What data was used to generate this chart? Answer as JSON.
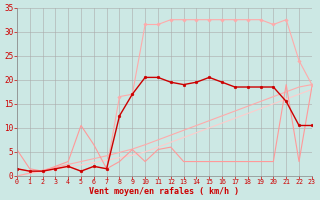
{
  "background_color": "#cce8e4",
  "grid_color": "#aaaaaa",
  "xlabel": "Vent moyen/en rafales ( km/h )",
  "xlabel_color": "#cc0000",
  "tick_color": "#cc0000",
  "xlim": [
    0,
    23
  ],
  "ylim": [
    0,
    35
  ],
  "xticks": [
    0,
    1,
    2,
    3,
    4,
    5,
    6,
    7,
    8,
    9,
    10,
    11,
    12,
    13,
    14,
    15,
    16,
    17,
    18,
    19,
    20,
    21,
    22,
    23
  ],
  "yticks": [
    0,
    5,
    10,
    15,
    20,
    25,
    30,
    35
  ],
  "lines": [
    {
      "x": [
        0,
        1,
        2,
        3,
        4,
        5,
        6,
        7,
        8,
        9,
        10,
        11,
        12,
        13,
        14,
        15,
        16,
        17,
        18,
        19,
        20,
        21,
        22,
        23
      ],
      "y": [
        0,
        0.5,
        0.9,
        1.4,
        1.8,
        2.3,
        2.8,
        3.3,
        3.8,
        4.3,
        5.0,
        6.0,
        7.0,
        8.0,
        9.0,
        10.0,
        11.0,
        12.0,
        13.0,
        14.0,
        15.0,
        16.0,
        17.0,
        18.0
      ],
      "color": "#ffcccc",
      "lw": 0.8,
      "marker": null,
      "ms": 0
    },
    {
      "x": [
        0,
        1,
        2,
        3,
        4,
        5,
        6,
        7,
        8,
        9,
        10,
        11,
        12,
        13,
        14,
        15,
        16,
        17,
        18,
        19,
        20,
        21,
        22,
        23
      ],
      "y": [
        0,
        0.6,
        1.2,
        1.8,
        2.4,
        3.0,
        3.6,
        4.2,
        4.9,
        5.6,
        6.5,
        7.5,
        8.5,
        9.5,
        10.5,
        11.5,
        12.5,
        13.5,
        14.5,
        15.5,
        16.5,
        17.5,
        18.5,
        19.0
      ],
      "color": "#ffaaaa",
      "lw": 0.8,
      "marker": null,
      "ms": 0
    },
    {
      "x": [
        0,
        1,
        2,
        3,
        4,
        5,
        6,
        7,
        8,
        9,
        10,
        11,
        12,
        13,
        14,
        15,
        16,
        17,
        18,
        19,
        20,
        21,
        22,
        23
      ],
      "y": [
        1.5,
        1.0,
        1.0,
        1.5,
        2.0,
        1.0,
        2.0,
        1.5,
        16.5,
        17.0,
        31.5,
        31.5,
        32.5,
        32.5,
        32.5,
        32.5,
        32.5,
        32.5,
        32.5,
        32.5,
        31.5,
        32.5,
        24.0,
        19.0
      ],
      "color": "#ffaaaa",
      "lw": 0.8,
      "marker": "D",
      "ms": 1.8
    },
    {
      "x": [
        0,
        1,
        2,
        3,
        4,
        5,
        6,
        7,
        8,
        9,
        10,
        11,
        12,
        13,
        14,
        15,
        16,
        17,
        18,
        19,
        20,
        21,
        22,
        23
      ],
      "y": [
        5.5,
        1.5,
        1.0,
        2.0,
        3.0,
        10.5,
        6.5,
        1.5,
        3.0,
        5.5,
        3.0,
        5.5,
        6.0,
        3.0,
        3.0,
        3.0,
        3.0,
        3.0,
        3.0,
        3.0,
        3.0,
        19.0,
        3.0,
        18.5
      ],
      "color": "#ff9999",
      "lw": 0.8,
      "marker": null,
      "ms": 0
    },
    {
      "x": [
        0,
        1,
        2,
        3,
        4,
        5,
        6,
        7,
        8,
        9,
        10,
        11,
        12,
        13,
        14,
        15,
        16,
        17,
        18,
        19,
        20,
        21,
        22,
        23
      ],
      "y": [
        1.5,
        1.0,
        1.0,
        1.5,
        2.0,
        1.0,
        2.0,
        1.5,
        12.5,
        17.0,
        20.5,
        20.5,
        19.5,
        19.0,
        19.5,
        20.5,
        19.5,
        18.5,
        18.5,
        18.5,
        18.5,
        15.5,
        10.5,
        10.5
      ],
      "color": "#cc0000",
      "lw": 1.0,
      "marker": "o",
      "ms": 2.0
    }
  ]
}
